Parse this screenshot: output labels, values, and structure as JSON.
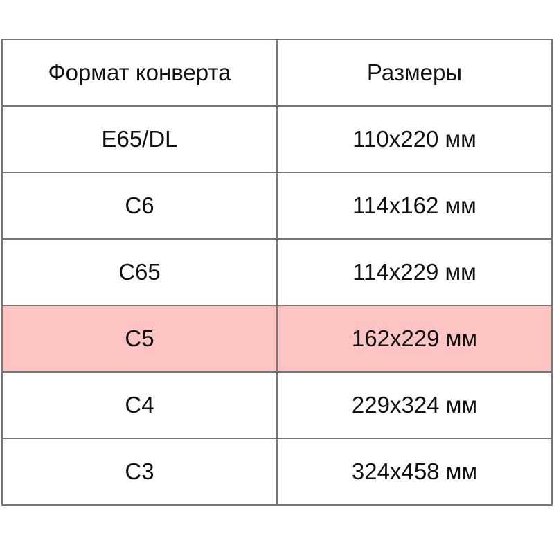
{
  "table": {
    "headers": [
      "Формат конверта",
      "Размеры"
    ],
    "rows": [
      {
        "format": "E65/DL",
        "size": "110x220 мм",
        "highlighted": false
      },
      {
        "format": "C6",
        "size": "114x162 мм",
        "highlighted": false
      },
      {
        "format": "C65",
        "size": "114x229 мм",
        "highlighted": false
      },
      {
        "format": "C5",
        "size": "162x229 мм",
        "highlighted": true
      },
      {
        "format": "C4",
        "size": "229x324 мм",
        "highlighted": false
      },
      {
        "format": "C3",
        "size": "324x458 мм",
        "highlighted": false
      }
    ],
    "highlight_color": "#fdc4c4"
  }
}
